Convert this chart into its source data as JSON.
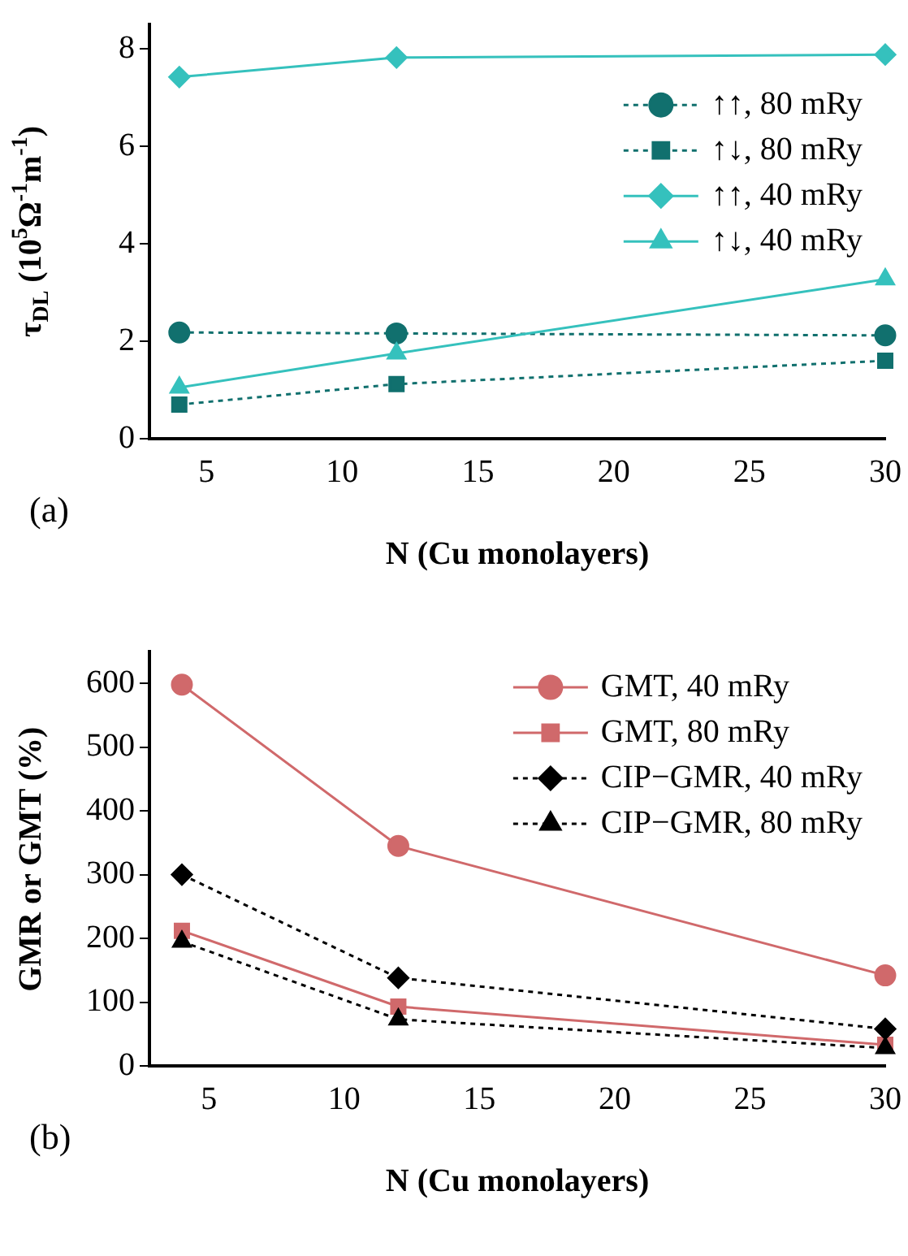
{
  "chart_data": [
    {
      "type": "line",
      "xlabel": "N (Cu monolayers)",
      "ylabel": "τ$_{DL}$ (10$^{5}$Ω$^{-1}$m$^{-1}$)",
      "x": [
        4,
        12,
        30
      ],
      "xlim": [
        2.9,
        30
      ],
      "xticks": [
        5,
        10,
        15,
        20,
        25,
        30
      ],
      "ylim": [
        0,
        8.5
      ],
      "yticks": [
        0,
        2,
        4,
        6,
        8
      ],
      "legend": "top right",
      "grid": false,
      "annotations": [
        "(a)"
      ],
      "series": [
        {
          "name": "↑↑, 80 mRy",
          "color": "#11706e",
          "values": [
            2.18,
            2.16,
            2.12
          ],
          "marker": "circle",
          "line_style": "dotted"
        },
        {
          "name": "↑↓, 80 mRy",
          "color": "#11706e",
          "values": [
            0.7,
            1.12,
            1.6
          ],
          "marker": "square",
          "line_style": "dotted"
        },
        {
          "name": "↑↑, 40 mRy",
          "color": "#35c1bd",
          "values": [
            7.42,
            7.82,
            7.88
          ],
          "marker": "diamond",
          "line_style": "solid"
        },
        {
          "name": "↑↓, 40 mRy",
          "color": "#35c1bd",
          "values": [
            1.05,
            1.75,
            3.27
          ],
          "marker": "triangle",
          "line_style": "solid"
        }
      ]
    },
    {
      "type": "line",
      "xlabel": "N (Cu monolayers)",
      "ylabel": "GMR or GMT (%)",
      "x": [
        4,
        12,
        30
      ],
      "xlim": [
        2.8,
        30
      ],
      "xticks": [
        5,
        10,
        15,
        20,
        25,
        30
      ],
      "ylim": [
        0,
        650
      ],
      "yticks": [
        0,
        100,
        200,
        300,
        400,
        500,
        600
      ],
      "legend": "top right",
      "grid": false,
      "annotations": [
        "(b)"
      ],
      "series": [
        {
          "name": "GMT, 40 mRy",
          "color": "#d0696b",
          "values": [
            598,
            345,
            142
          ],
          "marker": "circle",
          "line_style": "solid"
        },
        {
          "name": "GMT, 80 mRy",
          "color": "#d0696b",
          "values": [
            212,
            93,
            33
          ],
          "marker": "square",
          "line_style": "solid"
        },
        {
          "name": "CIP−GMR, 40 mRy",
          "color": "#000000",
          "values": [
            300,
            138,
            58
          ],
          "marker": "diamond",
          "line_style": "dotted"
        },
        {
          "name": "CIP−GMR, 80 mRy",
          "color": "#000000",
          "values": [
            195,
            73,
            28
          ],
          "marker": "triangle",
          "line_style": "dotted"
        }
      ]
    }
  ]
}
